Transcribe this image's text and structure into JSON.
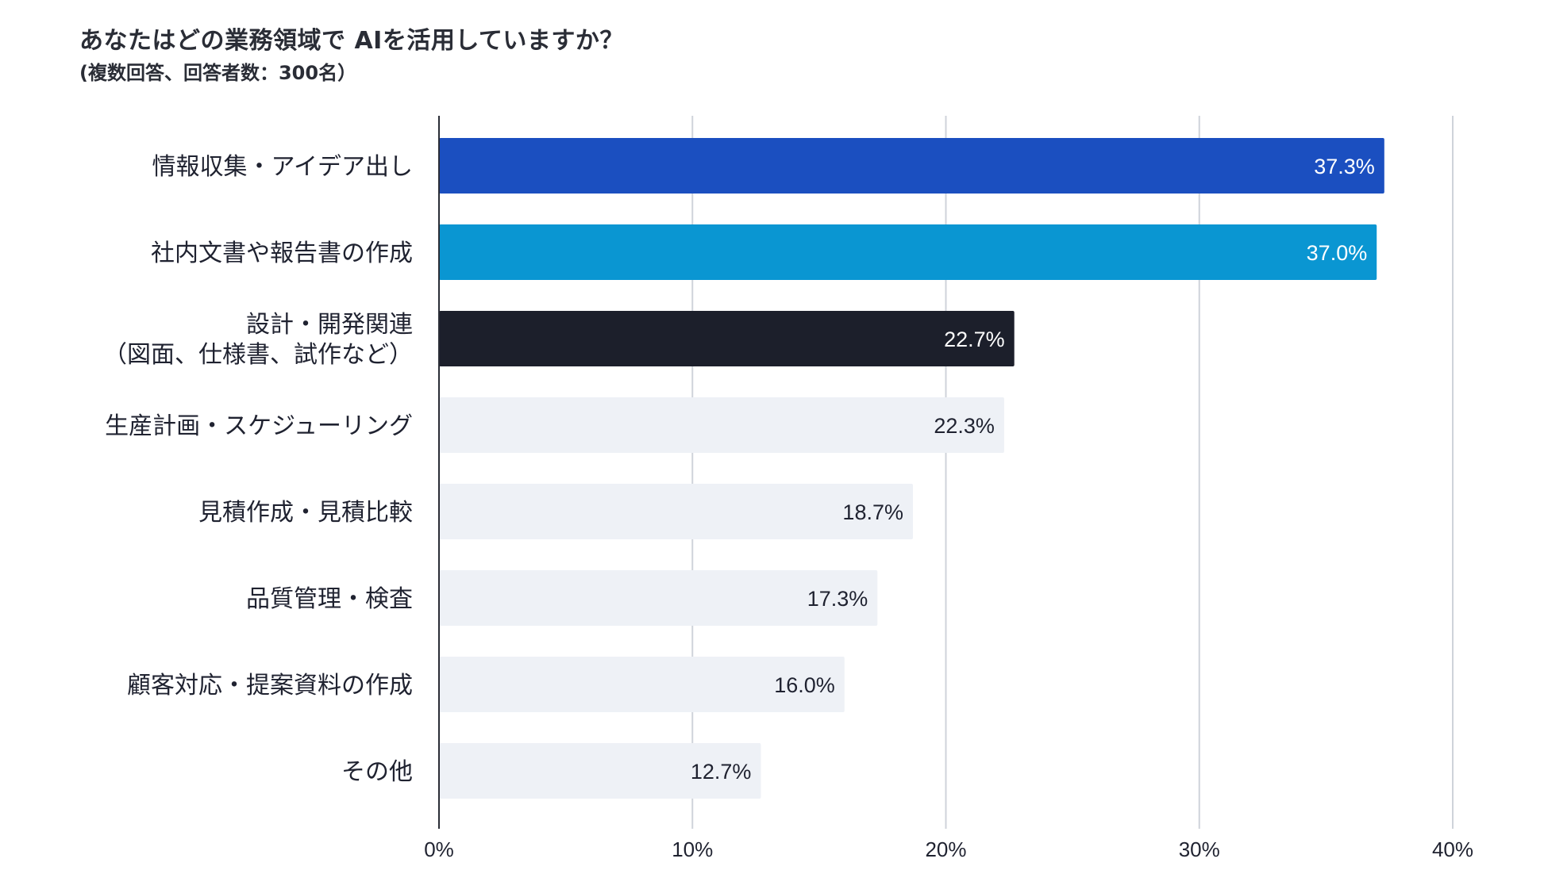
{
  "chart_data": {
    "type": "bar",
    "orientation": "horizontal",
    "title": "あなたはどの業務領域で AIを活用していますか？",
    "subtitle": "(複数回答、回答者数：300名）",
    "categories": [
      [
        "情報収集・アイデア出し"
      ],
      [
        "社内文書や報告書の作成"
      ],
      [
        "設計・開発関連",
        "（図面、仕様書、試作など）"
      ],
      [
        "生産計画・スケジューリング"
      ],
      [
        "見積作成・見積比較"
      ],
      [
        "品質管理・検査"
      ],
      [
        "顧客対応・提案資料の作成"
      ],
      [
        "その他"
      ]
    ],
    "values": [
      37.3,
      37.0,
      22.7,
      22.3,
      18.7,
      17.3,
      16.0,
      12.7
    ],
    "value_labels": [
      "37.3%",
      "37.0%",
      "22.7%",
      "22.3%",
      "18.7%",
      "17.3%",
      "16.0%",
      "12.7%"
    ],
    "bar_colors": [
      "#1b4fc0",
      "#0a96d2",
      "#1c1f2b",
      "#eef1f6",
      "#eef1f6",
      "#eef1f6",
      "#eef1f6",
      "#eef1f6"
    ],
    "label_colors": [
      "#ffffff",
      "#ffffff",
      "#ffffff",
      "#1f2230",
      "#1f2230",
      "#1f2230",
      "#1f2230",
      "#1f2230"
    ],
    "xlim": [
      0,
      40
    ],
    "xticks": [
      0,
      10,
      20,
      30,
      40
    ],
    "xtick_labels": [
      "0%",
      "10%",
      "20%",
      "30%",
      "40%"
    ],
    "grid": true,
    "xlabel": "",
    "ylabel": ""
  }
}
